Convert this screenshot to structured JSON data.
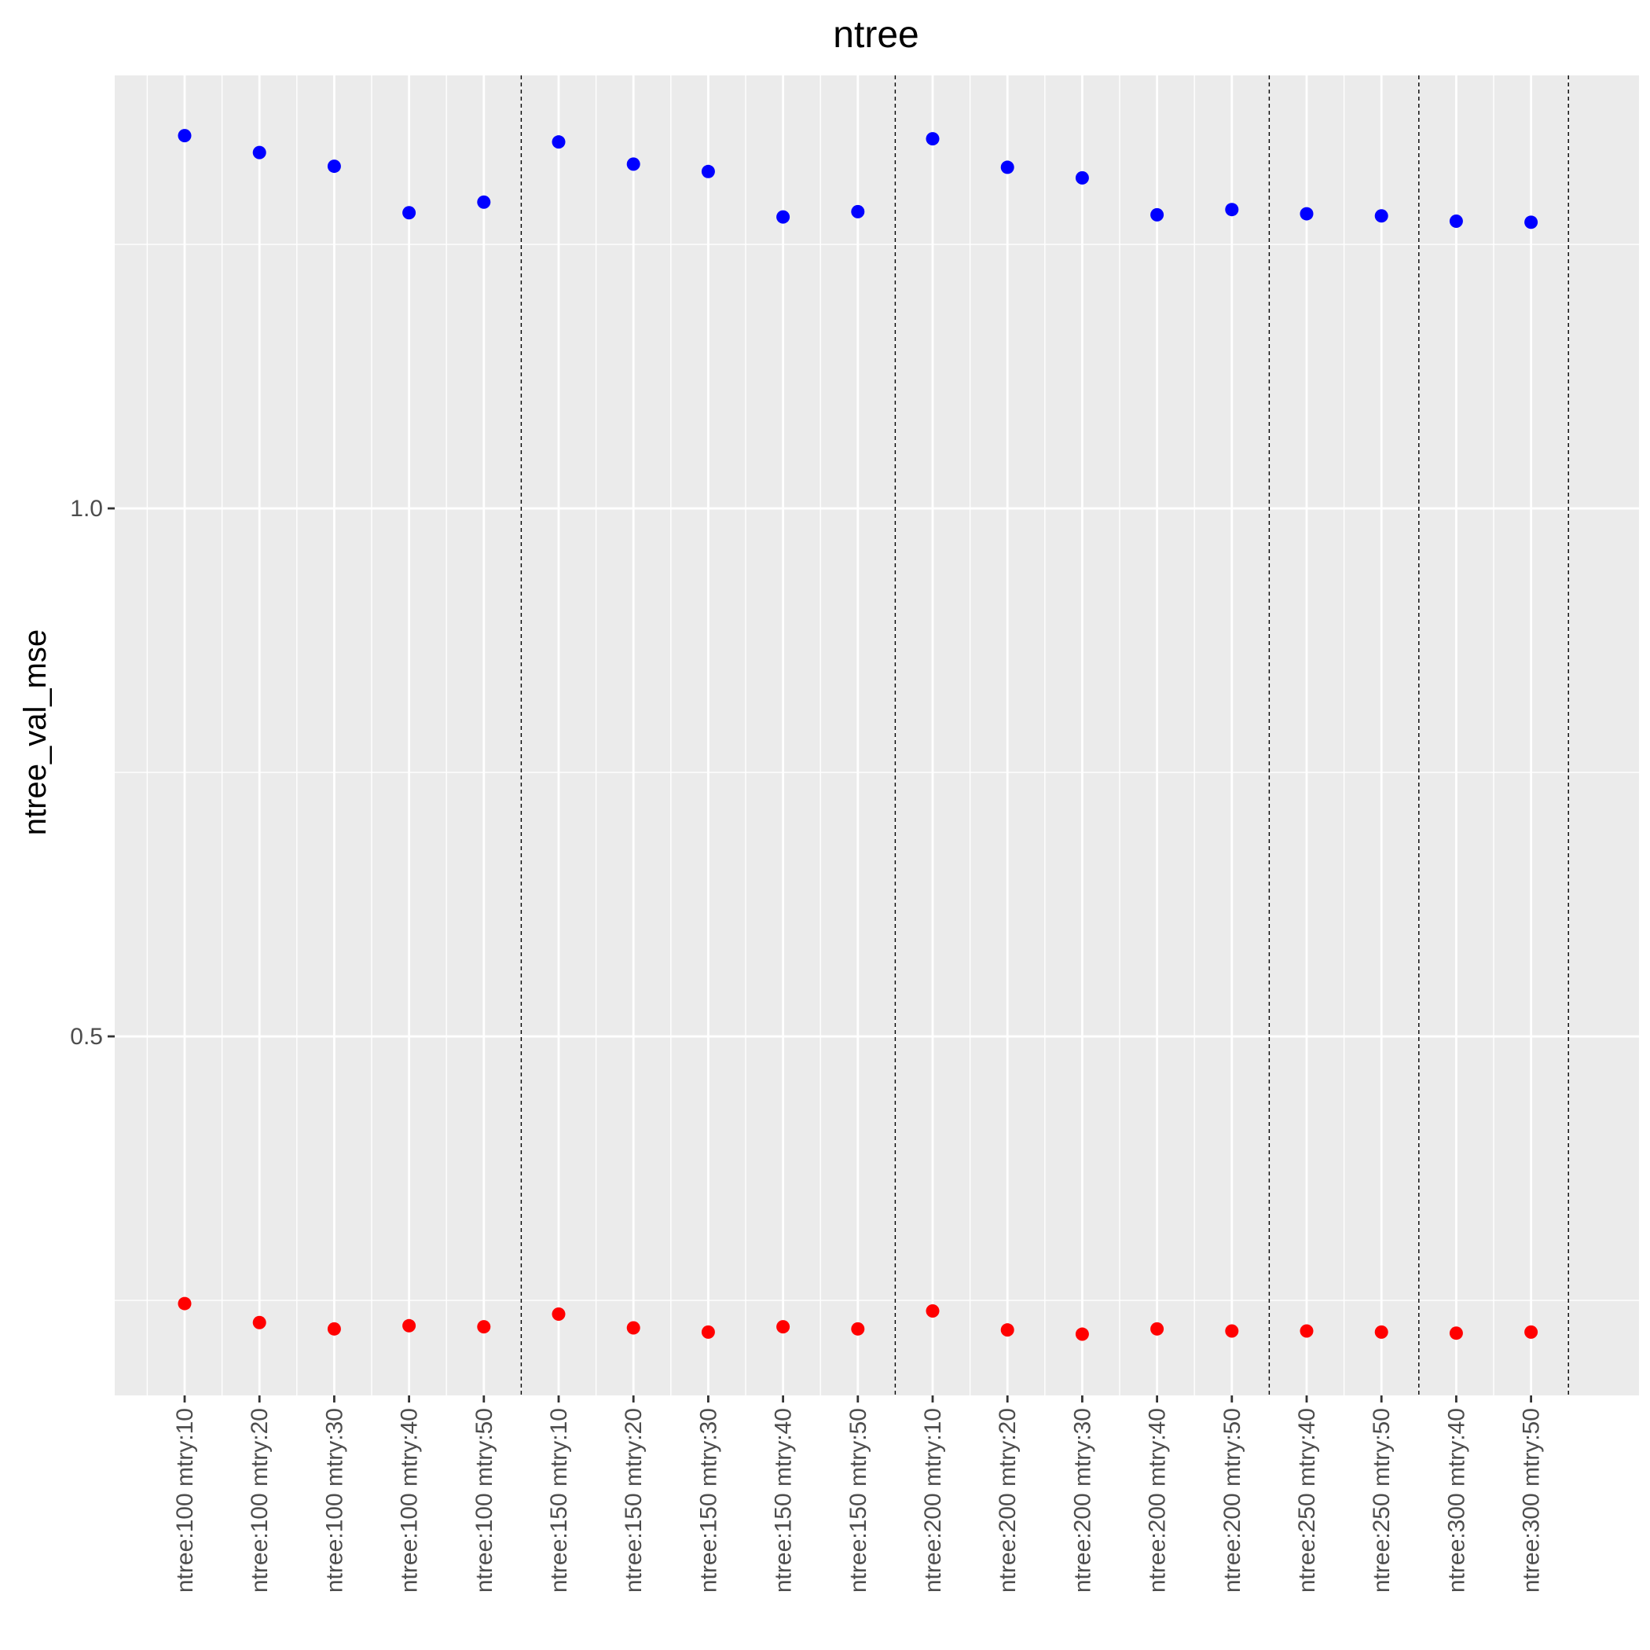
{
  "chart_data": {
    "type": "scatter",
    "title": "ntree",
    "xlabel": "",
    "ylabel": "ntree_val_mse",
    "ylim": [
      0.16,
      1.41
    ],
    "yticks": [
      {
        "value": 0.5,
        "label": "0.5"
      },
      {
        "value": 1.0,
        "label": "1.0"
      }
    ],
    "categories": [
      "ntree:100 mtry:10",
      "ntree:100 mtry:20",
      "ntree:100 mtry:30",
      "ntree:100 mtry:40",
      "ntree:100 mtry:50",
      "ntree:150 mtry:10",
      "ntree:150 mtry:20",
      "ntree:150 mtry:30",
      "ntree:150 mtry:40",
      "ntree:150 mtry:50",
      "ntree:200 mtry:10",
      "ntree:200 mtry:20",
      "ntree:200 mtry:30",
      "ntree:200 mtry:40",
      "ntree:200 mtry:50",
      "ntree:250 mtry:40",
      "ntree:250 mtry:50",
      "ntree:300 mtry:40",
      "ntree:300 mtry:50"
    ],
    "group_separators_after": [
      5,
      10,
      15,
      17,
      19
    ],
    "series": [
      {
        "color": "#0000ff",
        "values": [
          1.353,
          1.337,
          1.324,
          1.28,
          1.29,
          1.347,
          1.326,
          1.319,
          1.276,
          1.281,
          1.35,
          1.323,
          1.313,
          1.278,
          1.283,
          1.279,
          1.277,
          1.272,
          1.271
        ]
      },
      {
        "color": "#ff0000",
        "values": [
          0.247,
          0.229,
          0.223,
          0.226,
          0.225,
          0.237,
          0.224,
          0.22,
          0.225,
          0.223,
          0.24,
          0.222,
          0.218,
          0.223,
          0.221,
          0.221,
          0.22,
          0.219,
          0.22
        ]
      }
    ],
    "grid": true,
    "panel_color": "#ebebeb",
    "grid_color": "#ffffff",
    "separator_color": "#000000"
  }
}
